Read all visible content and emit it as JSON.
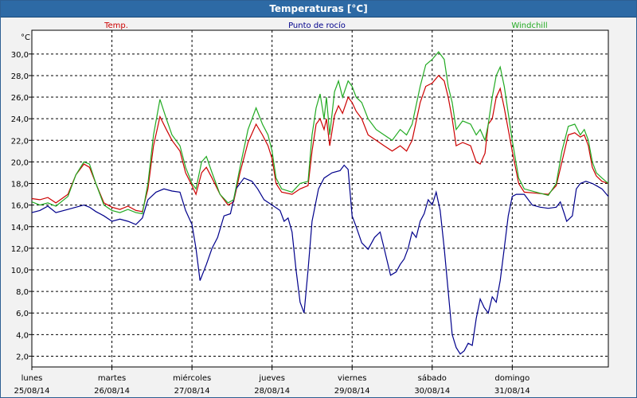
{
  "window": {
    "title": "Temperaturas [°C]"
  },
  "chart_data": {
    "type": "line",
    "title": "Temperaturas [°C]",
    "ylabel": "°C",
    "ylim": [
      1,
      32.2
    ],
    "yticks": [
      "2,0",
      "4,0",
      "6,0",
      "8,0",
      "10,0",
      "12,0",
      "14,0",
      "16,0",
      "18,0",
      "20,0",
      "22,0",
      "24,0",
      "26,0",
      "28,0",
      "30,0"
    ],
    "xlim": [
      0,
      7.2
    ],
    "days": [
      {
        "name": "lunes",
        "date": "25/08/14"
      },
      {
        "name": "martes",
        "date": "26/08/14"
      },
      {
        "name": "miércoles",
        "date": "27/08/14"
      },
      {
        "name": "jueves",
        "date": "28/08/14"
      },
      {
        "name": "viernes",
        "date": "29/08/14"
      },
      {
        "name": "sábado",
        "date": "30/08/14"
      },
      {
        "name": "domingo",
        "date": "31/08/14"
      }
    ],
    "grid": true,
    "legend_placement": "top",
    "series": [
      {
        "name": "Temp.",
        "color": "#cc0000",
        "points": [
          [
            0,
            16.6
          ],
          [
            0.1,
            16.5
          ],
          [
            0.2,
            16.7
          ],
          [
            0.3,
            16.2
          ],
          [
            0.45,
            17.0
          ],
          [
            0.55,
            18.8
          ],
          [
            0.65,
            19.8
          ],
          [
            0.72,
            19.5
          ],
          [
            0.8,
            18.0
          ],
          [
            0.9,
            16.2
          ],
          [
            1.0,
            15.8
          ],
          [
            1.1,
            15.6
          ],
          [
            1.2,
            15.9
          ],
          [
            1.3,
            15.5
          ],
          [
            1.38,
            15.4
          ],
          [
            1.45,
            17.5
          ],
          [
            1.52,
            21.5
          ],
          [
            1.6,
            24.2
          ],
          [
            1.68,
            23.0
          ],
          [
            1.75,
            22.0
          ],
          [
            1.85,
            21.0
          ],
          [
            1.92,
            19.0
          ],
          [
            2.0,
            17.8
          ],
          [
            2.05,
            17.0
          ],
          [
            2.12,
            19.0
          ],
          [
            2.18,
            19.5
          ],
          [
            2.25,
            18.5
          ],
          [
            2.35,
            17.0
          ],
          [
            2.45,
            16.0
          ],
          [
            2.52,
            16.3
          ],
          [
            2.6,
            19.0
          ],
          [
            2.7,
            21.8
          ],
          [
            2.8,
            23.5
          ],
          [
            2.88,
            22.5
          ],
          [
            2.95,
            21.5
          ],
          [
            3.0,
            20.3
          ],
          [
            3.05,
            18.0
          ],
          [
            3.12,
            17.2
          ],
          [
            3.25,
            17.0
          ],
          [
            3.35,
            17.5
          ],
          [
            3.45,
            17.8
          ],
          [
            3.5,
            21.0
          ],
          [
            3.55,
            23.5
          ],
          [
            3.6,
            24.0
          ],
          [
            3.65,
            23.0
          ],
          [
            3.68,
            24.0
          ],
          [
            3.72,
            21.5
          ],
          [
            3.78,
            24.3
          ],
          [
            3.83,
            25.2
          ],
          [
            3.88,
            24.5
          ],
          [
            3.95,
            26.0
          ],
          [
            4.0,
            25.5
          ],
          [
            4.05,
            24.7
          ],
          [
            4.12,
            24.0
          ],
          [
            4.2,
            22.5
          ],
          [
            4.3,
            22.0
          ],
          [
            4.4,
            21.5
          ],
          [
            4.5,
            21.0
          ],
          [
            4.6,
            21.5
          ],
          [
            4.68,
            21.0
          ],
          [
            4.75,
            22.0
          ],
          [
            4.85,
            25.5
          ],
          [
            4.92,
            27.0
          ],
          [
            5.0,
            27.3
          ],
          [
            5.08,
            28.0
          ],
          [
            5.15,
            27.5
          ],
          [
            5.2,
            26.0
          ],
          [
            5.25,
            24.0
          ],
          [
            5.3,
            21.5
          ],
          [
            5.38,
            21.8
          ],
          [
            5.48,
            21.5
          ],
          [
            5.55,
            20.0
          ],
          [
            5.6,
            19.8
          ],
          [
            5.66,
            20.8
          ],
          [
            5.7,
            23.5
          ],
          [
            5.75,
            24.0
          ],
          [
            5.8,
            26.0
          ],
          [
            5.85,
            26.8
          ],
          [
            5.9,
            25.0
          ],
          [
            5.95,
            23.0
          ],
          [
            6.0,
            21.0
          ],
          [
            6.08,
            18.0
          ],
          [
            6.15,
            17.2
          ],
          [
            6.3,
            17.1
          ],
          [
            6.45,
            17.0
          ],
          [
            6.55,
            17.8
          ],
          [
            6.62,
            20.0
          ],
          [
            6.7,
            22.5
          ],
          [
            6.78,
            22.7
          ],
          [
            6.85,
            22.3
          ],
          [
            6.9,
            22.5
          ],
          [
            6.95,
            21.5
          ],
          [
            7.0,
            19.5
          ],
          [
            7.05,
            18.7
          ],
          [
            7.12,
            18.2
          ],
          [
            7.2,
            18.0
          ]
        ]
      },
      {
        "name": "Punto de rocío",
        "color": "#00008b",
        "points": [
          [
            0,
            15.3
          ],
          [
            0.1,
            15.5
          ],
          [
            0.2,
            15.9
          ],
          [
            0.3,
            15.3
          ],
          [
            0.45,
            15.6
          ],
          [
            0.55,
            15.8
          ],
          [
            0.65,
            16.0
          ],
          [
            0.72,
            15.8
          ],
          [
            0.8,
            15.4
          ],
          [
            0.9,
            15.0
          ],
          [
            1.0,
            14.5
          ],
          [
            1.1,
            14.7
          ],
          [
            1.2,
            14.5
          ],
          [
            1.3,
            14.2
          ],
          [
            1.38,
            14.8
          ],
          [
            1.45,
            16.5
          ],
          [
            1.55,
            17.2
          ],
          [
            1.65,
            17.5
          ],
          [
            1.75,
            17.3
          ],
          [
            1.85,
            17.2
          ],
          [
            1.92,
            15.5
          ],
          [
            2.0,
            14.2
          ],
          [
            2.05,
            12.0
          ],
          [
            2.1,
            9.0
          ],
          [
            2.18,
            10.5
          ],
          [
            2.25,
            12.0
          ],
          [
            2.32,
            13.0
          ],
          [
            2.4,
            15.0
          ],
          [
            2.48,
            15.2
          ],
          [
            2.55,
            17.5
          ],
          [
            2.65,
            18.5
          ],
          [
            2.75,
            18.2
          ],
          [
            2.82,
            17.5
          ],
          [
            2.9,
            16.5
          ],
          [
            3.0,
            16.0
          ],
          [
            3.1,
            15.5
          ],
          [
            3.15,
            14.5
          ],
          [
            3.2,
            14.8
          ],
          [
            3.25,
            13.5
          ],
          [
            3.3,
            10.0
          ],
          [
            3.35,
            7.0
          ],
          [
            3.4,
            6.0
          ],
          [
            3.45,
            10.0
          ],
          [
            3.5,
            14.5
          ],
          [
            3.58,
            17.5
          ],
          [
            3.65,
            18.5
          ],
          [
            3.75,
            19.0
          ],
          [
            3.85,
            19.2
          ],
          [
            3.9,
            19.7
          ],
          [
            3.95,
            19.3
          ],
          [
            4.0,
            15.0
          ],
          [
            4.05,
            14.0
          ],
          [
            4.12,
            12.5
          ],
          [
            4.2,
            11.9
          ],
          [
            4.28,
            13.0
          ],
          [
            4.35,
            13.5
          ],
          [
            4.4,
            12.0
          ],
          [
            4.48,
            9.5
          ],
          [
            4.55,
            9.8
          ],
          [
            4.6,
            10.5
          ],
          [
            4.65,
            11.0
          ],
          [
            4.7,
            12.0
          ],
          [
            4.75,
            13.5
          ],
          [
            4.8,
            13.0
          ],
          [
            4.85,
            14.5
          ],
          [
            4.9,
            15.2
          ],
          [
            4.95,
            16.5
          ],
          [
            5.0,
            16.0
          ],
          [
            5.05,
            17.2
          ],
          [
            5.1,
            15.5
          ],
          [
            5.15,
            12.0
          ],
          [
            5.2,
            8.0
          ],
          [
            5.25,
            4.0
          ],
          [
            5.3,
            2.8
          ],
          [
            5.35,
            2.2
          ],
          [
            5.4,
            2.5
          ],
          [
            5.45,
            3.2
          ],
          [
            5.5,
            3.0
          ],
          [
            5.55,
            5.5
          ],
          [
            5.6,
            7.3
          ],
          [
            5.65,
            6.5
          ],
          [
            5.7,
            6.0
          ],
          [
            5.75,
            7.5
          ],
          [
            5.8,
            7.0
          ],
          [
            5.85,
            9.0
          ],
          [
            5.9,
            12.0
          ],
          [
            5.95,
            15.0
          ],
          [
            6.0,
            16.8
          ],
          [
            6.05,
            17.0
          ],
          [
            6.15,
            17.0
          ],
          [
            6.25,
            16.0
          ],
          [
            6.35,
            15.8
          ],
          [
            6.45,
            15.7
          ],
          [
            6.55,
            15.8
          ],
          [
            6.6,
            16.3
          ],
          [
            6.65,
            15.2
          ],
          [
            6.68,
            14.5
          ],
          [
            6.75,
            15.0
          ],
          [
            6.8,
            17.5
          ],
          [
            6.85,
            18.0
          ],
          [
            6.92,
            18.2
          ],
          [
            7.0,
            18.0
          ],
          [
            7.05,
            17.8
          ],
          [
            7.12,
            17.5
          ],
          [
            7.2,
            16.8
          ]
        ]
      },
      {
        "name": "Windchill",
        "color": "#22aa22",
        "points": [
          [
            0,
            16.3
          ],
          [
            0.1,
            16.0
          ],
          [
            0.2,
            16.2
          ],
          [
            0.3,
            15.9
          ],
          [
            0.45,
            16.8
          ],
          [
            0.55,
            18.8
          ],
          [
            0.65,
            20.0
          ],
          [
            0.72,
            19.8
          ],
          [
            0.8,
            18.0
          ],
          [
            0.9,
            16.0
          ],
          [
            1.0,
            15.5
          ],
          [
            1.1,
            15.3
          ],
          [
            1.2,
            15.6
          ],
          [
            1.3,
            15.3
          ],
          [
            1.38,
            15.2
          ],
          [
            1.45,
            18.0
          ],
          [
            1.52,
            22.5
          ],
          [
            1.6,
            25.8
          ],
          [
            1.68,
            24.0
          ],
          [
            1.75,
            22.5
          ],
          [
            1.85,
            21.5
          ],
          [
            1.92,
            19.5
          ],
          [
            2.0,
            18.0
          ],
          [
            2.05,
            17.5
          ],
          [
            2.12,
            20.0
          ],
          [
            2.18,
            20.5
          ],
          [
            2.25,
            19.0
          ],
          [
            2.35,
            17.0
          ],
          [
            2.45,
            16.2
          ],
          [
            2.52,
            16.5
          ],
          [
            2.6,
            19.5
          ],
          [
            2.7,
            23.0
          ],
          [
            2.8,
            25.0
          ],
          [
            2.88,
            23.5
          ],
          [
            2.95,
            22.5
          ],
          [
            3.0,
            21.0
          ],
          [
            3.05,
            18.5
          ],
          [
            3.12,
            17.5
          ],
          [
            3.25,
            17.2
          ],
          [
            3.35,
            18.0
          ],
          [
            3.45,
            18.2
          ],
          [
            3.5,
            22.5
          ],
          [
            3.55,
            25.0
          ],
          [
            3.6,
            26.3
          ],
          [
            3.65,
            24.0
          ],
          [
            3.68,
            26.0
          ],
          [
            3.72,
            22.5
          ],
          [
            3.78,
            26.5
          ],
          [
            3.83,
            27.5
          ],
          [
            3.88,
            26.0
          ],
          [
            3.95,
            27.5
          ],
          [
            4.0,
            27.0
          ],
          [
            4.05,
            26.0
          ],
          [
            4.12,
            25.5
          ],
          [
            4.2,
            24.0
          ],
          [
            4.3,
            23.0
          ],
          [
            4.4,
            22.5
          ],
          [
            4.5,
            22.0
          ],
          [
            4.6,
            23.0
          ],
          [
            4.68,
            22.5
          ],
          [
            4.75,
            23.5
          ],
          [
            4.85,
            27.0
          ],
          [
            4.92,
            29.0
          ],
          [
            5.0,
            29.5
          ],
          [
            5.08,
            30.2
          ],
          [
            5.15,
            29.5
          ],
          [
            5.2,
            27.0
          ],
          [
            5.25,
            25.5
          ],
          [
            5.3,
            23.0
          ],
          [
            5.38,
            23.8
          ],
          [
            5.48,
            23.5
          ],
          [
            5.55,
            22.5
          ],
          [
            5.6,
            23.0
          ],
          [
            5.66,
            22.0
          ],
          [
            5.7,
            23.5
          ],
          [
            5.75,
            26.0
          ],
          [
            5.8,
            28.0
          ],
          [
            5.85,
            28.8
          ],
          [
            5.9,
            27.0
          ],
          [
            5.95,
            24.5
          ],
          [
            6.0,
            22.0
          ],
          [
            6.08,
            18.5
          ],
          [
            6.15,
            17.5
          ],
          [
            6.3,
            17.2
          ],
          [
            6.45,
            16.9
          ],
          [
            6.55,
            18.0
          ],
          [
            6.62,
            21.0
          ],
          [
            6.7,
            23.3
          ],
          [
            6.78,
            23.5
          ],
          [
            6.85,
            22.5
          ],
          [
            6.9,
            23.0
          ],
          [
            6.95,
            22.0
          ],
          [
            7.0,
            20.0
          ],
          [
            7.05,
            19.0
          ],
          [
            7.12,
            18.5
          ],
          [
            7.2,
            18.0
          ]
        ]
      }
    ]
  }
}
